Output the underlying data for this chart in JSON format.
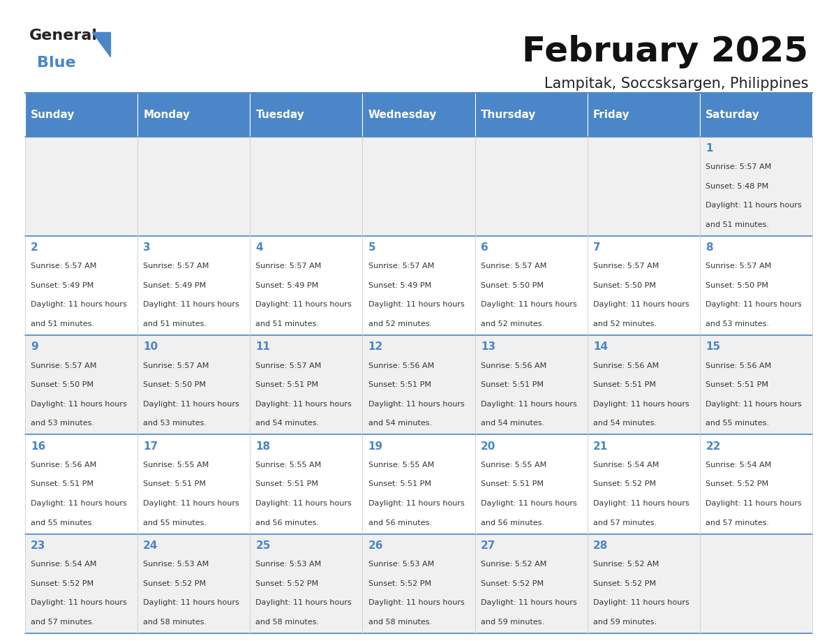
{
  "title": "February 2025",
  "subtitle": "Lampitak, Soccsksargen, Philippines",
  "header_color": "#4a86c8",
  "header_text_color": "#ffffff",
  "days_of_week": [
    "Sunday",
    "Monday",
    "Tuesday",
    "Wednesday",
    "Thursday",
    "Friday",
    "Saturday"
  ],
  "background_color": "#ffffff",
  "alt_row_color": "#f0f0f0",
  "cell_line_color": "#4a86c8",
  "day_number_color": "#4a86c8",
  "text_color": "#333333",
  "calendar_data": [
    [
      {
        "day": null,
        "sunrise": null,
        "sunset": null,
        "daylight": null
      },
      {
        "day": null,
        "sunrise": null,
        "sunset": null,
        "daylight": null
      },
      {
        "day": null,
        "sunrise": null,
        "sunset": null,
        "daylight": null
      },
      {
        "day": null,
        "sunrise": null,
        "sunset": null,
        "daylight": null
      },
      {
        "day": null,
        "sunrise": null,
        "sunset": null,
        "daylight": null
      },
      {
        "day": null,
        "sunrise": null,
        "sunset": null,
        "daylight": null
      },
      {
        "day": 1,
        "sunrise": "5:57 AM",
        "sunset": "5:48 PM",
        "daylight": "11 hours and 51 minutes."
      }
    ],
    [
      {
        "day": 2,
        "sunrise": "5:57 AM",
        "sunset": "5:49 PM",
        "daylight": "11 hours and 51 minutes."
      },
      {
        "day": 3,
        "sunrise": "5:57 AM",
        "sunset": "5:49 PM",
        "daylight": "11 hours and 51 minutes."
      },
      {
        "day": 4,
        "sunrise": "5:57 AM",
        "sunset": "5:49 PM",
        "daylight": "11 hours and 51 minutes."
      },
      {
        "day": 5,
        "sunrise": "5:57 AM",
        "sunset": "5:49 PM",
        "daylight": "11 hours and 52 minutes."
      },
      {
        "day": 6,
        "sunrise": "5:57 AM",
        "sunset": "5:50 PM",
        "daylight": "11 hours and 52 minutes."
      },
      {
        "day": 7,
        "sunrise": "5:57 AM",
        "sunset": "5:50 PM",
        "daylight": "11 hours and 52 minutes."
      },
      {
        "day": 8,
        "sunrise": "5:57 AM",
        "sunset": "5:50 PM",
        "daylight": "11 hours and 53 minutes."
      }
    ],
    [
      {
        "day": 9,
        "sunrise": "5:57 AM",
        "sunset": "5:50 PM",
        "daylight": "11 hours and 53 minutes."
      },
      {
        "day": 10,
        "sunrise": "5:57 AM",
        "sunset": "5:50 PM",
        "daylight": "11 hours and 53 minutes."
      },
      {
        "day": 11,
        "sunrise": "5:57 AM",
        "sunset": "5:51 PM",
        "daylight": "11 hours and 54 minutes."
      },
      {
        "day": 12,
        "sunrise": "5:56 AM",
        "sunset": "5:51 PM",
        "daylight": "11 hours and 54 minutes."
      },
      {
        "day": 13,
        "sunrise": "5:56 AM",
        "sunset": "5:51 PM",
        "daylight": "11 hours and 54 minutes."
      },
      {
        "day": 14,
        "sunrise": "5:56 AM",
        "sunset": "5:51 PM",
        "daylight": "11 hours and 54 minutes."
      },
      {
        "day": 15,
        "sunrise": "5:56 AM",
        "sunset": "5:51 PM",
        "daylight": "11 hours and 55 minutes."
      }
    ],
    [
      {
        "day": 16,
        "sunrise": "5:56 AM",
        "sunset": "5:51 PM",
        "daylight": "11 hours and 55 minutes."
      },
      {
        "day": 17,
        "sunrise": "5:55 AM",
        "sunset": "5:51 PM",
        "daylight": "11 hours and 55 minutes."
      },
      {
        "day": 18,
        "sunrise": "5:55 AM",
        "sunset": "5:51 PM",
        "daylight": "11 hours and 56 minutes."
      },
      {
        "day": 19,
        "sunrise": "5:55 AM",
        "sunset": "5:51 PM",
        "daylight": "11 hours and 56 minutes."
      },
      {
        "day": 20,
        "sunrise": "5:55 AM",
        "sunset": "5:51 PM",
        "daylight": "11 hours and 56 minutes."
      },
      {
        "day": 21,
        "sunrise": "5:54 AM",
        "sunset": "5:52 PM",
        "daylight": "11 hours and 57 minutes."
      },
      {
        "day": 22,
        "sunrise": "5:54 AM",
        "sunset": "5:52 PM",
        "daylight": "11 hours and 57 minutes."
      }
    ],
    [
      {
        "day": 23,
        "sunrise": "5:54 AM",
        "sunset": "5:52 PM",
        "daylight": "11 hours and 57 minutes."
      },
      {
        "day": 24,
        "sunrise": "5:53 AM",
        "sunset": "5:52 PM",
        "daylight": "11 hours and 58 minutes."
      },
      {
        "day": 25,
        "sunrise": "5:53 AM",
        "sunset": "5:52 PM",
        "daylight": "11 hours and 58 minutes."
      },
      {
        "day": 26,
        "sunrise": "5:53 AM",
        "sunset": "5:52 PM",
        "daylight": "11 hours and 58 minutes."
      },
      {
        "day": 27,
        "sunrise": "5:52 AM",
        "sunset": "5:52 PM",
        "daylight": "11 hours and 59 minutes."
      },
      {
        "day": 28,
        "sunrise": "5:52 AM",
        "sunset": "5:52 PM",
        "daylight": "11 hours and 59 minutes."
      },
      {
        "day": null,
        "sunrise": null,
        "sunset": null,
        "daylight": null
      }
    ]
  ],
  "logo_text_general": "General",
  "logo_text_blue": "Blue",
  "logo_general_color": "#222222",
  "logo_blue_color": "#4a86c8",
  "logo_triangle_color": "#4a86c8"
}
